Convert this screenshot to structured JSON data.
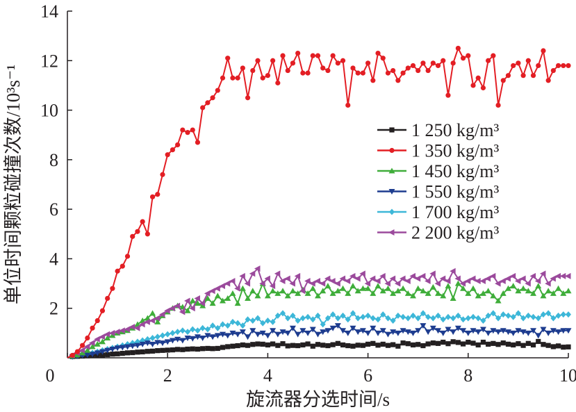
{
  "chart_data": {
    "type": "line",
    "xlabel": "旋流器分选时间/s",
    "ylabel": "单位时间颗粒碰撞次数/10³s⁻¹",
    "xlim": [
      0,
      10
    ],
    "ylim": [
      0,
      14
    ],
    "x_ticks": [
      0,
      2,
      4,
      6,
      8,
      10
    ],
    "y_ticks": [
      0,
      2,
      4,
      6,
      8,
      10,
      12,
      14
    ],
    "grid": false,
    "legend_position": "right",
    "x": [
      0.1,
      0.2,
      0.3,
      0.4,
      0.5,
      0.6,
      0.7,
      0.8,
      0.9,
      1.0,
      1.1,
      1.2,
      1.3,
      1.4,
      1.5,
      1.6,
      1.7,
      1.8,
      1.9,
      2.0,
      2.1,
      2.2,
      2.3,
      2.4,
      2.5,
      2.6,
      2.7,
      2.8,
      2.9,
      3.0,
      3.1,
      3.2,
      3.3,
      3.4,
      3.5,
      3.6,
      3.7,
      3.8,
      3.9,
      4.0,
      4.1,
      4.2,
      4.3,
      4.4,
      4.5,
      4.6,
      4.7,
      4.8,
      4.9,
      5.0,
      5.1,
      5.2,
      5.3,
      5.4,
      5.5,
      5.6,
      5.7,
      5.8,
      5.9,
      6.0,
      6.1,
      6.2,
      6.3,
      6.4,
      6.5,
      6.6,
      6.7,
      6.8,
      6.9,
      7.0,
      7.1,
      7.2,
      7.3,
      7.4,
      7.5,
      7.6,
      7.7,
      7.8,
      7.9,
      8.0,
      8.1,
      8.2,
      8.3,
      8.4,
      8.5,
      8.6,
      8.7,
      8.8,
      8.9,
      9.0,
      9.1,
      9.2,
      9.3,
      9.4,
      9.5,
      9.6,
      9.7,
      9.8,
      9.9,
      10.0
    ],
    "series": [
      {
        "name": "1 250 kg/m³",
        "color": "#231f20",
        "marker": "square",
        "values": [
          0.05,
          0.06,
          0.07,
          0.08,
          0.09,
          0.1,
          0.11,
          0.13,
          0.15,
          0.16,
          0.18,
          0.2,
          0.21,
          0.23,
          0.24,
          0.26,
          0.27,
          0.29,
          0.3,
          0.31,
          0.32,
          0.34,
          0.33,
          0.35,
          0.36,
          0.35,
          0.37,
          0.38,
          0.37,
          0.38,
          0.42,
          0.45,
          0.47,
          0.49,
          0.52,
          0.5,
          0.54,
          0.56,
          0.55,
          0.52,
          0.56,
          0.5,
          0.57,
          0.48,
          0.5,
          0.49,
          0.52,
          0.56,
          0.47,
          0.54,
          0.51,
          0.49,
          0.53,
          0.58,
          0.52,
          0.49,
          0.47,
          0.51,
          0.5,
          0.55,
          0.58,
          0.51,
          0.55,
          0.5,
          0.53,
          0.47,
          0.6,
          0.57,
          0.52,
          0.54,
          0.49,
          0.56,
          0.6,
          0.58,
          0.63,
          0.57,
          0.65,
          0.62,
          0.56,
          0.63,
          0.59,
          0.52,
          0.63,
          0.55,
          0.58,
          0.54,
          0.6,
          0.55,
          0.52,
          0.57,
          0.5,
          0.58,
          0.52,
          0.66,
          0.54,
          0.5,
          0.45,
          0.48,
          0.43,
          0.44
        ]
      },
      {
        "name": "1 350 kg/m³",
        "color": "#e31e24",
        "marker": "circle",
        "values": [
          0.1,
          0.25,
          0.5,
          0.8,
          1.2,
          1.5,
          1.9,
          2.4,
          2.8,
          3.5,
          3.7,
          4.1,
          4.9,
          5.1,
          5.5,
          5.0,
          6.5,
          6.6,
          7.4,
          8.2,
          8.4,
          8.6,
          9.2,
          9.1,
          9.2,
          8.7,
          10.1,
          10.3,
          10.5,
          10.8,
          11.3,
          12.1,
          11.3,
          11.3,
          11.7,
          10.5,
          11.6,
          12.0,
          11.3,
          11.4,
          12.0,
          11.1,
          12.2,
          11.6,
          11.9,
          12.3,
          11.5,
          11.5,
          12.2,
          12.2,
          11.7,
          11.6,
          12.2,
          11.9,
          12.0,
          10.2,
          11.7,
          11.5,
          11.5,
          11.9,
          11.2,
          12.3,
          12.1,
          11.5,
          11.6,
          11.2,
          11.5,
          11.7,
          11.8,
          11.6,
          11.9,
          11.6,
          11.9,
          11.8,
          12.0,
          10.6,
          11.9,
          12.5,
          12.1,
          12.2,
          11.0,
          11.3,
          10.9,
          12.0,
          12.2,
          10.2,
          11.2,
          11.4,
          11.8,
          11.9,
          11.4,
          12.0,
          11.4,
          11.8,
          12.4,
          11.2,
          11.6,
          11.8,
          11.8,
          11.8
        ]
      },
      {
        "name": "1 450 kg/m³",
        "color": "#3fad3a",
        "marker": "triangle-up",
        "values": [
          0.08,
          0.12,
          0.2,
          0.3,
          0.45,
          0.55,
          0.65,
          0.8,
          0.9,
          1.0,
          1.05,
          1.1,
          1.2,
          1.35,
          1.5,
          1.6,
          1.8,
          1.45,
          1.7,
          1.85,
          2.0,
          2.1,
          2.05,
          1.9,
          2.3,
          2.2,
          2.1,
          2.4,
          2.2,
          2.5,
          2.3,
          2.4,
          2.6,
          2.2,
          2.8,
          2.4,
          2.7,
          2.5,
          3.0,
          2.5,
          2.7,
          2.6,
          2.7,
          2.5,
          2.7,
          2.6,
          2.75,
          2.6,
          2.8,
          2.5,
          2.7,
          2.9,
          2.6,
          2.7,
          2.8,
          2.6,
          2.9,
          2.7,
          2.8,
          2.8,
          2.6,
          2.9,
          2.7,
          2.8,
          2.6,
          2.7,
          2.8,
          2.6,
          2.5,
          2.8,
          2.7,
          2.6,
          2.85,
          2.6,
          2.5,
          2.9,
          2.4,
          3.0,
          2.8,
          2.6,
          2.8,
          2.5,
          2.6,
          2.7,
          2.5,
          2.3,
          2.6,
          2.8,
          2.9,
          2.7,
          2.8,
          2.7,
          2.6,
          2.9,
          2.5,
          2.7,
          2.6,
          2.8,
          2.6,
          2.7
        ]
      },
      {
        "name": "1 550 kg/m³",
        "color": "#1d3c8f",
        "marker": "triangle-down",
        "values": [
          0.05,
          0.07,
          0.1,
          0.12,
          0.15,
          0.2,
          0.25,
          0.3,
          0.35,
          0.4,
          0.42,
          0.45,
          0.48,
          0.5,
          0.55,
          0.6,
          0.55,
          0.62,
          0.6,
          0.65,
          0.7,
          0.75,
          0.7,
          0.8,
          0.78,
          0.85,
          0.8,
          0.9,
          0.85,
          0.9,
          0.95,
          0.9,
          1.0,
          0.95,
          1.05,
          0.85,
          1.1,
          0.95,
          1.0,
          0.9,
          1.1,
          0.95,
          1.05,
          1.0,
          1.2,
          0.95,
          1.1,
          1.0,
          1.15,
          0.95,
          1.05,
          1.1,
          1.2,
          1.3,
          1.1,
          1.0,
          1.2,
          1.05,
          1.1,
          1.0,
          1.2,
          1.0,
          1.1,
          0.95,
          1.05,
          1.0,
          1.1,
          1.05,
          1.0,
          1.1,
          1.3,
          1.05,
          1.2,
          1.1,
          1.0,
          1.15,
          1.05,
          1.2,
          1.1,
          1.0,
          1.1,
          1.05,
          1.15,
          1.0,
          1.1,
          1.05,
          1.1,
          1.05,
          1.0,
          1.1,
          1.05,
          1.0,
          1.1,
          0.9,
          1.15,
          1.0,
          1.1,
          1.05,
          1.1,
          1.1
        ]
      },
      {
        "name": "1 700 kg/m³",
        "color": "#3db7d8",
        "marker": "diamond",
        "values": [
          0.05,
          0.08,
          0.12,
          0.15,
          0.2,
          0.25,
          0.3,
          0.35,
          0.4,
          0.45,
          0.5,
          0.55,
          0.6,
          0.65,
          0.7,
          0.75,
          0.8,
          0.85,
          0.9,
          0.95,
          1.0,
          1.05,
          1.1,
          1.05,
          1.15,
          1.1,
          1.2,
          1.15,
          1.3,
          1.2,
          1.35,
          1.3,
          1.45,
          1.4,
          1.3,
          1.55,
          1.5,
          1.6,
          1.4,
          1.5,
          1.45,
          1.7,
          1.8,
          1.6,
          1.7,
          1.5,
          1.6,
          1.65,
          1.55,
          1.7,
          1.35,
          1.6,
          1.75,
          1.6,
          1.7,
          1.55,
          1.8,
          1.6,
          1.65,
          1.7,
          1.6,
          1.55,
          1.75,
          1.6,
          1.5,
          1.7,
          1.65,
          1.6,
          1.7,
          1.6,
          1.8,
          1.65,
          1.6,
          1.7,
          1.55,
          1.65,
          1.6,
          1.7,
          1.55,
          1.6,
          1.65,
          1.6,
          1.5,
          1.7,
          1.8,
          1.6,
          1.75,
          1.7,
          1.65,
          1.8,
          1.6,
          1.7,
          1.65,
          1.6,
          1.75,
          1.8,
          1.6,
          1.7,
          1.75,
          1.75
        ]
      },
      {
        "name": "2 200 kg/m³",
        "color": "#9b4a9c",
        "marker": "triangle-left",
        "values": [
          0.1,
          0.2,
          0.3,
          0.45,
          0.6,
          0.75,
          0.85,
          0.95,
          1.0,
          1.05,
          1.1,
          1.15,
          1.25,
          1.2,
          1.35,
          1.45,
          1.5,
          1.6,
          1.75,
          1.9,
          2.0,
          2.1,
          1.85,
          2.3,
          2.0,
          2.4,
          2.2,
          2.6,
          2.7,
          2.8,
          2.9,
          3.0,
          3.1,
          2.8,
          3.3,
          3.0,
          3.4,
          3.6,
          3.0,
          3.2,
          2.9,
          3.4,
          3.1,
          3.2,
          3.0,
          3.3,
          2.7,
          3.1,
          3.0,
          3.1,
          3.0,
          3.2,
          3.1,
          3.0,
          3.2,
          3.1,
          3.3,
          3.2,
          3.4,
          3.0,
          3.2,
          3.1,
          3.3,
          3.0,
          3.2,
          3.0,
          3.2,
          3.1,
          3.3,
          3.2,
          3.3,
          3.1,
          3.4,
          3.0,
          3.2,
          3.1,
          3.5,
          3.2,
          3.0,
          3.1,
          3.2,
          3.1,
          3.1,
          3.2,
          3.3,
          3.0,
          3.1,
          3.2,
          3.3,
          3.1,
          3.2,
          3.0,
          3.3,
          3.1,
          3.4,
          3.0,
          3.2,
          3.3,
          3.3,
          3.3
        ]
      }
    ]
  }
}
